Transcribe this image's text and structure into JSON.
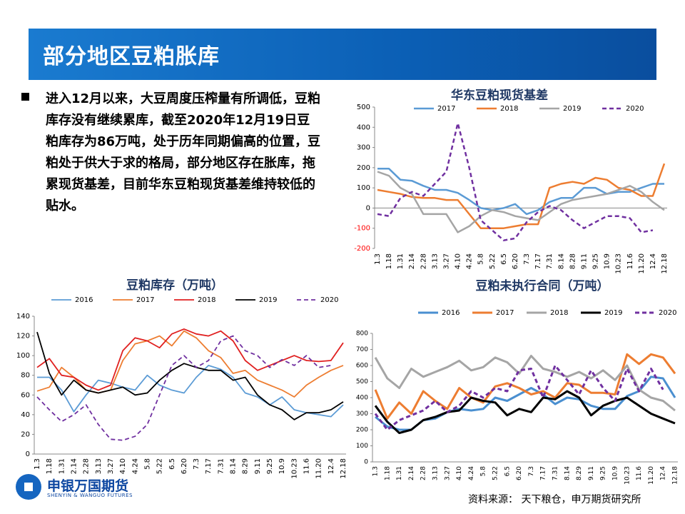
{
  "header": {
    "title": "部分地区豆粕胀库"
  },
  "bullet": "进入12月以来，大豆周度压榨量有所调低，豆粕库存没有继续累库，截至2020年12月19日豆粕库存为86万吨，处于历年同期偏高的位置，豆粕处于供大于求的格局，部分地区存在胀库，拖累现货基差，目前华东豆粕现货基差维持较低的贴水。",
  "source": "资料来源：  天下粮仓，申万期货研究所",
  "logo": {
    "name": "申银万国期货",
    "sub": "SHENYIN & WANGUO FUTURES"
  },
  "chart_data": [
    {
      "type": "line",
      "title": "华东豆粕现货基差",
      "categories": [
        "1.3",
        "1.18",
        "1.31",
        "2.14",
        "2.28",
        "3.13",
        "3.27",
        "4.10",
        "4.24",
        "5.8",
        "5.22",
        "6.5",
        "6.20",
        "7.3",
        "7.17",
        "7.31",
        "8.14",
        "8.28",
        "9.11",
        "9.25",
        "10.9",
        "10.23",
        "11.6",
        "11.20",
        "12.4",
        "12.18"
      ],
      "ylim": [
        -200,
        500
      ],
      "yticks": [
        -200,
        -100,
        0,
        100,
        200,
        300,
        400,
        500
      ],
      "grid": false,
      "series": [
        {
          "name": "2017",
          "color": "#5b9bd5",
          "values": [
            195,
            195,
            140,
            135,
            110,
            90,
            90,
            75,
            40,
            0,
            -10,
            0,
            20,
            -30,
            -10,
            30,
            50,
            50,
            100,
            100,
            70,
            80,
            80,
            100,
            120,
            120
          ]
        },
        {
          "name": "2018",
          "color": "#ed7d31",
          "values": [
            90,
            80,
            70,
            55,
            50,
            50,
            40,
            40,
            -30,
            -100,
            -100,
            -100,
            -90,
            -80,
            -80,
            100,
            120,
            130,
            120,
            150,
            140,
            100,
            90,
            60,
            60,
            220
          ]
        },
        {
          "name": "2019",
          "color": "#a5a5a5",
          "values": [
            180,
            160,
            100,
            70,
            -30,
            -30,
            -30,
            -120,
            -90,
            -40,
            -10,
            -20,
            -40,
            -50,
            -60,
            -20,
            20,
            40,
            50,
            60,
            70,
            90,
            110,
            80,
            30,
            -10
          ]
        },
        {
          "name": "2020",
          "color": "#7030a0",
          "style": "dashed",
          "values": [
            -30,
            -40,
            50,
            80,
            60,
            120,
            180,
            420,
            200,
            -60,
            -110,
            -160,
            -150,
            -70,
            -20,
            10,
            -10,
            -60,
            -100,
            -70,
            -40,
            -40,
            -50,
            -120,
            -110,
            null
          ]
        }
      ]
    },
    {
      "type": "line",
      "title": "豆粕库存（万吨）",
      "categories": [
        "1.3",
        "1.18",
        "1.31",
        "2.14",
        "2.28",
        "3.13",
        "3.27",
        "4.10",
        "4.24",
        "5.8",
        "5.22",
        "6.5",
        "6.20",
        "7.3",
        "7.17",
        "7.31",
        "8.14",
        "8.29",
        "9.11",
        "9.25",
        "10.9",
        "10.23",
        "11.6",
        "11.20",
        "12.4",
        "12.18"
      ],
      "ylim": [
        0,
        140
      ],
      "yticks": [
        0,
        20,
        40,
        60,
        80,
        100,
        120,
        140
      ],
      "grid": false,
      "series": [
        {
          "name": "2016",
          "color": "#5b9bd5",
          "values": [
            78,
            78,
            65,
            43,
            60,
            75,
            72,
            68,
            65,
            80,
            70,
            65,
            62,
            78,
            90,
            86,
            78,
            62,
            58,
            50,
            58,
            45,
            42,
            40,
            38,
            50
          ]
        },
        {
          "name": "2017",
          "color": "#ed7d31",
          "values": [
            64,
            68,
            88,
            78,
            65,
            62,
            65,
            95,
            112,
            115,
            120,
            110,
            125,
            118,
            105,
            98,
            82,
            85,
            75,
            70,
            65,
            58,
            70,
            78,
            85,
            90
          ]
        },
        {
          "name": "2018",
          "color": "#e02020",
          "values": [
            88,
            97,
            80,
            78,
            70,
            65,
            70,
            105,
            118,
            115,
            108,
            122,
            127,
            122,
            120,
            125,
            115,
            95,
            85,
            90,
            95,
            100,
            95,
            94,
            95,
            113
          ]
        },
        {
          "name": "2019",
          "color": "#000000",
          "values": [
            124,
            82,
            60,
            75,
            65,
            62,
            65,
            68,
            60,
            62,
            75,
            85,
            92,
            88,
            85,
            85,
            75,
            78,
            60,
            50,
            45,
            35,
            42,
            42,
            45,
            53
          ]
        },
        {
          "name": "2020",
          "color": "#7030a0",
          "style": "dashed",
          "values": [
            58,
            45,
            33,
            40,
            50,
            30,
            15,
            14,
            18,
            30,
            60,
            90,
            100,
            88,
            95,
            115,
            120,
            105,
            100,
            88,
            96,
            90,
            100,
            88,
            90,
            null
          ]
        }
      ]
    },
    {
      "type": "line",
      "title": "豆粕未执行合同（万吨）",
      "categories": [
        "1.3",
        "1.18",
        "1.31",
        "2.14",
        "2.28",
        "3.13",
        "3.27",
        "4.10",
        "4.24",
        "5.8",
        "5.22",
        "6.5",
        "6.20",
        "7.3",
        "7.17",
        "7.31",
        "8.14",
        "8.29",
        "9.11",
        "9.25",
        "10.9",
        "10.23",
        "11.6",
        "11.20",
        "12.4",
        "12.18"
      ],
      "ylim": [
        0,
        800
      ],
      "yticks": [
        0,
        100,
        200,
        300,
        400,
        500,
        600,
        700,
        800
      ],
      "grid": false,
      "series": [
        {
          "name": "2016",
          "color": "#4a8fd0",
          "values": [
            280,
            220,
            200,
            200,
            260,
            270,
            310,
            330,
            320,
            330,
            400,
            380,
            420,
            460,
            420,
            360,
            400,
            390,
            350,
            330,
            330,
            410,
            440,
            530,
            520,
            400
          ]
        },
        {
          "name": "2017",
          "color": "#ed7d31",
          "values": [
            450,
            270,
            370,
            300,
            440,
            380,
            330,
            460,
            400,
            370,
            470,
            490,
            460,
            420,
            440,
            400,
            490,
            480,
            430,
            430,
            420,
            670,
            610,
            670,
            650,
            550
          ]
        },
        {
          "name": "2018",
          "color": "#a5a5a5",
          "values": [
            650,
            520,
            460,
            580,
            530,
            560,
            590,
            630,
            570,
            590,
            650,
            620,
            550,
            660,
            580,
            560,
            530,
            560,
            520,
            570,
            510,
            600,
            450,
            400,
            380,
            320
          ]
        },
        {
          "name": "2019",
          "color": "#000000",
          "values": [
            350,
            250,
            180,
            200,
            260,
            280,
            310,
            320,
            400,
            380,
            370,
            290,
            330,
            310,
            400,
            390,
            440,
            400,
            290,
            350,
            380,
            400,
            350,
            300,
            270,
            240
          ]
        },
        {
          "name": "2020",
          "color": "#7030a0",
          "style": "dashed",
          "values": [
            300,
            200,
            260,
            290,
            320,
            380,
            310,
            350,
            440,
            400,
            460,
            440,
            570,
            580,
            400,
            600,
            510,
            420,
            570,
            460,
            380,
            580,
            440,
            580,
            450,
            null
          ]
        }
      ]
    }
  ]
}
